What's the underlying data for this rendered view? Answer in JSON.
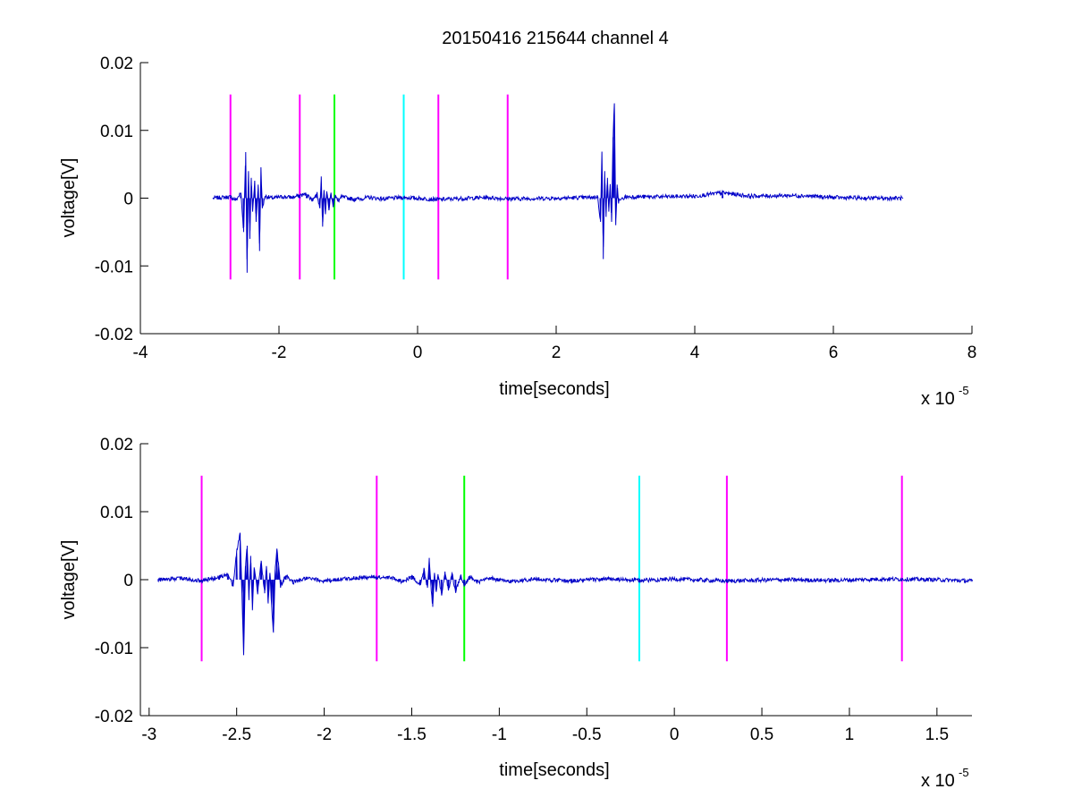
{
  "chart_data": [
    {
      "type": "line",
      "title": "20150416 215644 channel 4",
      "xlabel": "time[seconds]",
      "ylabel": "voltage[V]",
      "x_scale_label": "x 10",
      "x_scale_exponent": "-5",
      "xlim": [
        -4,
        8
      ],
      "ylim": [
        -0.02,
        0.02
      ],
      "xticks": [
        "-4",
        "-2",
        "0",
        "2",
        "4",
        "6",
        "8"
      ],
      "xtick_values": [
        -4,
        -2,
        0,
        2,
        4,
        6,
        8
      ],
      "yticks": [
        "-0.02",
        "-0.01",
        "0",
        "0.01",
        "0.02"
      ],
      "ytick_values": [
        -0.02,
        -0.01,
        0,
        0.01,
        0.02
      ],
      "grid": false,
      "series": [
        {
          "color": "#0000c8",
          "x_range": [
            -2.95,
            7.0
          ],
          "points": [
            [
              -2.95,
              0
            ],
            [
              -2.7,
              0.0002
            ],
            [
              -2.62,
              -0.0003
            ],
            [
              -2.55,
              0.0008
            ],
            [
              -2.51,
              -0.005
            ],
            [
              -2.48,
              0.0068
            ],
            [
              -2.46,
              -0.011
            ],
            [
              -2.44,
              0.004
            ],
            [
              -2.42,
              -0.006
            ],
            [
              -2.4,
              0.003
            ],
            [
              -2.38,
              -0.002
            ],
            [
              -2.35,
              0.0025
            ],
            [
              -2.33,
              -0.0035
            ],
            [
              -2.3,
              0.002
            ],
            [
              -2.28,
              -0.0078
            ],
            [
              -2.26,
              0.0045
            ],
            [
              -2.24,
              -0.0015
            ],
            [
              -2.2,
              0.0003
            ],
            [
              -2.1,
              0
            ],
            [
              -1.95,
              0.0002
            ],
            [
              -1.8,
              0.0001
            ],
            [
              -1.7,
              0.0004
            ],
            [
              -1.6,
              0.0006
            ],
            [
              -1.52,
              -0.0003
            ],
            [
              -1.45,
              0.0006
            ],
            [
              -1.41,
              -0.0015
            ],
            [
              -1.39,
              0.0032
            ],
            [
              -1.37,
              -0.0042
            ],
            [
              -1.35,
              0.0012
            ],
            [
              -1.33,
              -0.0022
            ],
            [
              -1.31,
              0.001
            ],
            [
              -1.28,
              -0.0018
            ],
            [
              -1.25,
              0.0008
            ],
            [
              -1.22,
              -0.0012
            ],
            [
              -1.19,
              0.0005
            ],
            [
              -1.15,
              -0.0005
            ],
            [
              -1.1,
              0.0002
            ],
            [
              -0.9,
              -0.0002
            ],
            [
              -0.7,
              0.0001
            ],
            [
              -0.5,
              -0.0001
            ],
            [
              -0.2,
              0.0001
            ],
            [
              0.3,
              -0.0002
            ],
            [
              1.0,
              0.0001
            ],
            [
              1.3,
              -0.0001
            ],
            [
              2.0,
              0
            ],
            [
              2.5,
              0.0001
            ],
            [
              2.6,
              0.0002
            ],
            [
              2.64,
              -0.0035
            ],
            [
              2.66,
              0.0068
            ],
            [
              2.68,
              -0.009
            ],
            [
              2.7,
              0.004
            ],
            [
              2.72,
              -0.0025
            ],
            [
              2.74,
              0.003
            ],
            [
              2.76,
              -0.002
            ],
            [
              2.78,
              0.002
            ],
            [
              2.8,
              -0.0035
            ],
            [
              2.82,
              0.009
            ],
            [
              2.84,
              0.0138
            ],
            [
              2.86,
              -0.004
            ],
            [
              2.88,
              0.002
            ],
            [
              2.9,
              -0.0005
            ],
            [
              3.0,
              0.0002
            ],
            [
              3.5,
              0.0002
            ],
            [
              4.0,
              0.0003
            ],
            [
              4.4,
              0.0008
            ],
            [
              4.8,
              0.0003
            ],
            [
              5.5,
              0.0004
            ],
            [
              6.0,
              0.0001
            ],
            [
              6.5,
              0
            ],
            [
              7.0,
              0
            ]
          ]
        }
      ],
      "markers": [
        {
          "x": -2.7,
          "color": "#ff00ff"
        },
        {
          "x": -1.7,
          "color": "#ff00ff"
        },
        {
          "x": -1.2,
          "color": "#00ff00"
        },
        {
          "x": -0.2,
          "color": "#00ffff"
        },
        {
          "x": 0.3,
          "color": "#ff00ff"
        },
        {
          "x": 1.3,
          "color": "#ff00ff"
        }
      ],
      "marker_ylim": [
        -0.012,
        0.0153
      ]
    },
    {
      "type": "line",
      "title": "",
      "xlabel": "time[seconds]",
      "ylabel": "voltage[V]",
      "x_scale_label": "x 10",
      "x_scale_exponent": "-5",
      "xlim": [
        -3.05,
        1.7
      ],
      "ylim": [
        -0.02,
        0.02
      ],
      "xticks": [
        "-3",
        "-2.5",
        "-2",
        "-1.5",
        "-1",
        "-0.5",
        "0",
        "0.5",
        "1",
        "1.5"
      ],
      "xtick_values": [
        -3,
        -2.5,
        -2,
        -1.5,
        -1,
        -0.5,
        0,
        0.5,
        1,
        1.5
      ],
      "yticks": [
        "-0.02",
        "-0.01",
        "0",
        "0.01",
        "0.02"
      ],
      "ytick_values": [
        -0.02,
        -0.01,
        0,
        0.01,
        0.02
      ],
      "grid": false,
      "series": [
        {
          "color": "#0000c8",
          "x_range": [
            -2.95,
            1.7
          ],
          "points": [
            [
              -2.95,
              0
            ],
            [
              -2.8,
              0.0002
            ],
            [
              -2.7,
              -0.0002
            ],
            [
              -2.6,
              0.0004
            ],
            [
              -2.55,
              0.0008
            ],
            [
              -2.52,
              -0.001
            ],
            [
              -2.5,
              0.0042
            ],
            [
              -2.48,
              0.0068
            ],
            [
              -2.47,
              -0.002
            ],
            [
              -2.46,
              -0.011
            ],
            [
              -2.45,
              0.002
            ],
            [
              -2.44,
              0.005
            ],
            [
              -2.43,
              -0.003
            ],
            [
              -2.42,
              0.0035
            ],
            [
              -2.41,
              -0.0045
            ],
            [
              -2.4,
              0.0018
            ],
            [
              -2.38,
              -0.002
            ],
            [
              -2.36,
              0.0028
            ],
            [
              -2.34,
              -0.002
            ],
            [
              -2.33,
              0.002
            ],
            [
              -2.32,
              -0.0035
            ],
            [
              -2.31,
              0.001
            ],
            [
              -2.3,
              -0.004
            ],
            [
              -2.29,
              -0.0078
            ],
            [
              -2.28,
              0.0015
            ],
            [
              -2.27,
              0.0045
            ],
            [
              -2.26,
              0.002
            ],
            [
              -2.25,
              -0.001
            ],
            [
              -2.22,
              0.0006
            ],
            [
              -2.18,
              -0.0004
            ],
            [
              -2.1,
              0.0002
            ],
            [
              -2.0,
              -0.0002
            ],
            [
              -1.9,
              0.0001
            ],
            [
              -1.8,
              0.0003
            ],
            [
              -1.7,
              0.0004
            ],
            [
              -1.6,
              0.0002
            ],
            [
              -1.55,
              -0.0003
            ],
            [
              -1.5,
              0.0005
            ],
            [
              -1.45,
              -0.0008
            ],
            [
              -1.43,
              0.0015
            ],
            [
              -1.41,
              -0.0012
            ],
            [
              -1.4,
              0.0032
            ],
            [
              -1.39,
              -0.001
            ],
            [
              -1.38,
              -0.004
            ],
            [
              -1.37,
              0.001
            ],
            [
              -1.36,
              -0.0018
            ],
            [
              -1.35,
              0.0008
            ],
            [
              -1.33,
              -0.0022
            ],
            [
              -1.31,
              0.0012
            ],
            [
              -1.29,
              -0.0015
            ],
            [
              -1.27,
              0.0009
            ],
            [
              -1.25,
              -0.0018
            ],
            [
              -1.22,
              0.0006
            ],
            [
              -1.2,
              -0.001
            ],
            [
              -1.17,
              0.0005
            ],
            [
              -1.13,
              -0.0004
            ],
            [
              -1.05,
              0.0002
            ],
            [
              -0.95,
              -0.0003
            ],
            [
              -0.8,
              0.0001
            ],
            [
              -0.6,
              -0.0002
            ],
            [
              -0.4,
              0.0001
            ],
            [
              -0.2,
              -0.0001
            ],
            [
              0.0,
              0.0001
            ],
            [
              0.3,
              -0.0002
            ],
            [
              0.6,
              0
            ],
            [
              0.9,
              -0.0001
            ],
            [
              1.2,
              0.0001
            ],
            [
              1.5,
              0
            ],
            [
              1.7,
              -0.0002
            ]
          ]
        }
      ],
      "markers": [
        {
          "x": -2.7,
          "color": "#ff00ff"
        },
        {
          "x": -1.7,
          "color": "#ff00ff"
        },
        {
          "x": -1.2,
          "color": "#00ff00"
        },
        {
          "x": -0.2,
          "color": "#00ffff"
        },
        {
          "x": 0.3,
          "color": "#ff00ff"
        },
        {
          "x": 1.3,
          "color": "#ff00ff"
        }
      ],
      "marker_ylim": [
        -0.012,
        0.0153
      ]
    }
  ]
}
